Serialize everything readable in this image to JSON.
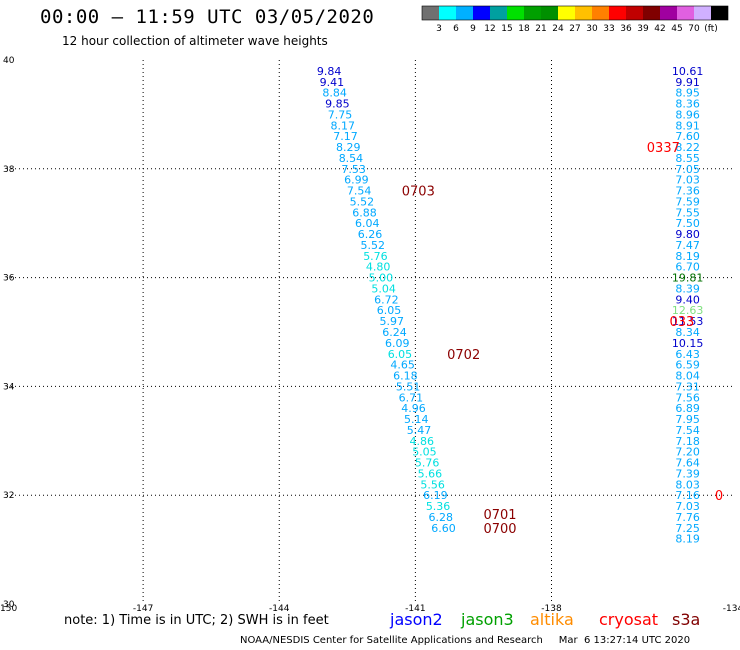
{
  "header": {
    "title": "00:00 – 11:59 UTC 03/05/2020",
    "subtitle": "12 hour collection of altimeter wave heights"
  },
  "colorbar": {
    "colors": [
      "#707070",
      "#00ffff",
      "#00b0ff",
      "#0000ff",
      "#00a0a0",
      "#00e000",
      "#00a000",
      "#009000",
      "#ffff00",
      "#ffc000",
      "#ff8000",
      "#ff0000",
      "#c00000",
      "#800000",
      "#a000a0",
      "#e060e0",
      "#d0b0ff",
      "#000000"
    ],
    "labels": [
      "3",
      "6",
      "9",
      "12",
      "15",
      "18",
      "21",
      "24",
      "27",
      "30",
      "33",
      "36",
      "39",
      "42",
      "45",
      "70",
      "(ft)"
    ]
  },
  "note": "note:  1) Time is in UTC;  2) SWH is in feet",
  "satellites": [
    {
      "name": "jason2",
      "color": "#0000ff"
    },
    {
      "name": "jason3",
      "color": "#00a000"
    },
    {
      "name": "altika",
      "color": "#ff8c00"
    },
    {
      "name": "cryosat",
      "color": "#ff0000"
    },
    {
      "name": "s3a",
      "color": "#800000"
    }
  ],
  "footer": "NOAA/NESDIS Center for Satellite Applications and Research     Mar  6 13:27:14 UTC 2020",
  "chart_data": {
    "type": "scatter",
    "title": "12 hour collection of altimeter wave heights",
    "xlim": [
      -150,
      -134
    ],
    "ylim": [
      30,
      40
    ],
    "x_ticks": [
      "-150",
      "-147",
      "-144",
      "-141",
      "-138",
      "-134"
    ],
    "y_ticks": [
      "30",
      "32",
      "34",
      "36",
      "38",
      "40"
    ],
    "grid": true,
    "series": [
      {
        "name": "track 1",
        "points": [
          {
            "x": -142.9,
            "y": 39.8,
            "v": "9.84",
            "c": "#0000cc"
          },
          {
            "x": -142.84,
            "y": 39.6,
            "v": "9.41",
            "c": "#0000cc"
          },
          {
            "x": -142.78,
            "y": 39.4,
            "v": "8.84",
            "c": "#00a8ff"
          },
          {
            "x": -142.72,
            "y": 39.2,
            "v": "9.85",
            "c": "#0000cc"
          },
          {
            "x": -142.66,
            "y": 39.0,
            "v": "7.75",
            "c": "#00a8ff"
          },
          {
            "x": -142.6,
            "y": 38.8,
            "v": "8.17",
            "c": "#00a8ff"
          },
          {
            "x": -142.54,
            "y": 38.6,
            "v": "7.17",
            "c": "#00a8ff"
          },
          {
            "x": -142.48,
            "y": 38.4,
            "v": "8.29",
            "c": "#00a8ff"
          },
          {
            "x": -142.42,
            "y": 38.2,
            "v": "8.54",
            "c": "#00a8ff"
          },
          {
            "x": -142.36,
            "y": 38.0,
            "v": "7.53",
            "c": "#00a8ff"
          },
          {
            "x": -142.3,
            "y": 37.8,
            "v": "6.99",
            "c": "#00a8ff"
          },
          {
            "x": -142.24,
            "y": 37.6,
            "v": "7.54",
            "c": "#00a8ff"
          },
          {
            "x": -142.18,
            "y": 37.4,
            "v": "5.52",
            "c": "#00a8ff"
          },
          {
            "x": -142.12,
            "y": 37.2,
            "v": "6.88",
            "c": "#00a8ff"
          },
          {
            "x": -142.06,
            "y": 37.0,
            "v": "6.04",
            "c": "#00a8ff"
          },
          {
            "x": -142.0,
            "y": 36.8,
            "v": "6.26",
            "c": "#00a8ff"
          },
          {
            "x": -141.94,
            "y": 36.6,
            "v": "5.52",
            "c": "#00a8ff"
          },
          {
            "x": -141.88,
            "y": 36.4,
            "v": "5.76",
            "c": "#00e0e0"
          },
          {
            "x": -141.82,
            "y": 36.2,
            "v": "4.80",
            "c": "#00e0e0"
          },
          {
            "x": -141.76,
            "y": 36.0,
            "v": "5.00",
            "c": "#00e0e0"
          },
          {
            "x": -141.7,
            "y": 35.8,
            "v": "5.04",
            "c": "#00e0e0"
          },
          {
            "x": -141.64,
            "y": 35.6,
            "v": "6.72",
            "c": "#00a8ff"
          },
          {
            "x": -141.58,
            "y": 35.4,
            "v": "6.05",
            "c": "#00a8ff"
          },
          {
            "x": -141.52,
            "y": 35.2,
            "v": "5.97",
            "c": "#00a8ff"
          },
          {
            "x": -141.46,
            "y": 35.0,
            "v": "6.24",
            "c": "#00a8ff"
          },
          {
            "x": -141.4,
            "y": 34.8,
            "v": "6.09",
            "c": "#00a8ff"
          },
          {
            "x": -141.34,
            "y": 34.6,
            "v": "6.05",
            "c": "#00e0e0"
          },
          {
            "x": -141.28,
            "y": 34.4,
            "v": "4.65",
            "c": "#00a8ff"
          },
          {
            "x": -141.22,
            "y": 34.2,
            "v": "6.18",
            "c": "#00a8ff"
          },
          {
            "x": -141.16,
            "y": 34.0,
            "v": "5.51",
            "c": "#00a8ff"
          },
          {
            "x": -141.1,
            "y": 33.8,
            "v": "6.71",
            "c": "#00a8ff"
          },
          {
            "x": -141.04,
            "y": 33.6,
            "v": "4.96",
            "c": "#00a8ff"
          },
          {
            "x": -140.98,
            "y": 33.4,
            "v": "5.14",
            "c": "#00a8ff"
          },
          {
            "x": -140.92,
            "y": 33.2,
            "v": "5.47",
            "c": "#00a8ff"
          },
          {
            "x": -140.86,
            "y": 33.0,
            "v": "4.86",
            "c": "#00e0e0"
          },
          {
            "x": -140.8,
            "y": 32.8,
            "v": "5.05",
            "c": "#00e0e0"
          },
          {
            "x": -140.74,
            "y": 32.6,
            "v": "5.76",
            "c": "#00e0e0"
          },
          {
            "x": -140.68,
            "y": 32.4,
            "v": "5.66",
            "c": "#00e0e0"
          },
          {
            "x": -140.62,
            "y": 32.2,
            "v": "5.56",
            "c": "#00e0e0"
          },
          {
            "x": -140.56,
            "y": 32.0,
            "v": "6.19",
            "c": "#00a8ff"
          },
          {
            "x": -140.5,
            "y": 31.8,
            "v": "5.36",
            "c": "#00e0e0"
          },
          {
            "x": -140.44,
            "y": 31.6,
            "v": "6.28",
            "c": "#00a8ff"
          },
          {
            "x": -140.38,
            "y": 31.4,
            "v": "6.60",
            "c": "#00a8ff"
          }
        ]
      },
      {
        "name": "track 2",
        "points": [
          {
            "x": -135.0,
            "y": 39.8,
            "v": "10.61",
            "c": "#0000cc"
          },
          {
            "x": -135.0,
            "y": 39.6,
            "v": "9.91",
            "c": "#0000cc"
          },
          {
            "x": -135.0,
            "y": 39.4,
            "v": "8.95",
            "c": "#00a8ff"
          },
          {
            "x": -135.0,
            "y": 39.2,
            "v": "8.36",
            "c": "#00a8ff"
          },
          {
            "x": -135.0,
            "y": 39.0,
            "v": "8.96",
            "c": "#00a8ff"
          },
          {
            "x": -135.0,
            "y": 38.8,
            "v": "8.91",
            "c": "#00a8ff"
          },
          {
            "x": -135.0,
            "y": 38.6,
            "v": "7.60",
            "c": "#00a8ff"
          },
          {
            "x": -135.0,
            "y": 38.4,
            "v": "8.22",
            "c": "#00a8ff"
          },
          {
            "x": -135.0,
            "y": 38.2,
            "v": "8.55",
            "c": "#00a8ff"
          },
          {
            "x": -135.0,
            "y": 38.0,
            "v": "7.05",
            "c": "#00a8ff"
          },
          {
            "x": -135.0,
            "y": 37.8,
            "v": "7.03",
            "c": "#00a8ff"
          },
          {
            "x": -135.0,
            "y": 37.6,
            "v": "7.36",
            "c": "#00a8ff"
          },
          {
            "x": -135.0,
            "y": 37.4,
            "v": "7.59",
            "c": "#00a8ff"
          },
          {
            "x": -135.0,
            "y": 37.2,
            "v": "7.55",
            "c": "#00a8ff"
          },
          {
            "x": -135.0,
            "y": 37.0,
            "v": "7.50",
            "c": "#00a8ff"
          },
          {
            "x": -135.0,
            "y": 36.8,
            "v": "9.80",
            "c": "#0000cc"
          },
          {
            "x": -135.0,
            "y": 36.6,
            "v": "7.47",
            "c": "#00a8ff"
          },
          {
            "x": -135.0,
            "y": 36.4,
            "v": "8.19",
            "c": "#00a8ff"
          },
          {
            "x": -135.0,
            "y": 36.2,
            "v": "6.70",
            "c": "#00a8ff"
          },
          {
            "x": -135.0,
            "y": 36.0,
            "v": "19.81",
            "c": "#007000"
          },
          {
            "x": -135.0,
            "y": 35.8,
            "v": "8.39",
            "c": "#00a8ff"
          },
          {
            "x": -135.0,
            "y": 35.6,
            "v": "9.40",
            "c": "#0000cc"
          },
          {
            "x": -135.0,
            "y": 35.4,
            "v": "12.63",
            "c": "#80e080"
          },
          {
            "x": -135.0,
            "y": 35.2,
            "v": "11.53",
            "c": "#0000cc"
          },
          {
            "x": -135.0,
            "y": 35.0,
            "v": "8.34",
            "c": "#00a8ff"
          },
          {
            "x": -135.0,
            "y": 34.8,
            "v": "10.15",
            "c": "#0000cc"
          },
          {
            "x": -135.0,
            "y": 34.6,
            "v": "6.43",
            "c": "#00a8ff"
          },
          {
            "x": -135.0,
            "y": 34.4,
            "v": "6.59",
            "c": "#00a8ff"
          },
          {
            "x": -135.0,
            "y": 34.2,
            "v": "8.04",
            "c": "#00a8ff"
          },
          {
            "x": -135.0,
            "y": 34.0,
            "v": "7.31",
            "c": "#00a8ff"
          },
          {
            "x": -135.0,
            "y": 33.8,
            "v": "7.56",
            "c": "#00a8ff"
          },
          {
            "x": -135.0,
            "y": 33.6,
            "v": "6.89",
            "c": "#00a8ff"
          },
          {
            "x": -135.0,
            "y": 33.4,
            "v": "7.95",
            "c": "#00a8ff"
          },
          {
            "x": -135.0,
            "y": 33.2,
            "v": "7.54",
            "c": "#00a8ff"
          },
          {
            "x": -135.0,
            "y": 33.0,
            "v": "7.18",
            "c": "#00a8ff"
          },
          {
            "x": -135.0,
            "y": 32.8,
            "v": "7.20",
            "c": "#00a8ff"
          },
          {
            "x": -135.0,
            "y": 32.6,
            "v": "7.64",
            "c": "#00a8ff"
          },
          {
            "x": -135.0,
            "y": 32.4,
            "v": "7.39",
            "c": "#00a8ff"
          },
          {
            "x": -135.0,
            "y": 32.2,
            "v": "8.03",
            "c": "#00a8ff"
          },
          {
            "x": -135.0,
            "y": 32.0,
            "v": "7.16",
            "c": "#00a8ff"
          },
          {
            "x": -135.0,
            "y": 31.8,
            "v": "7.03",
            "c": "#00a8ff"
          },
          {
            "x": -135.0,
            "y": 31.6,
            "v": "7.76",
            "c": "#00a8ff"
          },
          {
            "x": -135.0,
            "y": 31.4,
            "v": "7.25",
            "c": "#00a8ff"
          },
          {
            "x": -135.0,
            "y": 31.2,
            "v": "8.19",
            "c": "#00a8ff"
          }
        ]
      }
    ],
    "time_annotations": [
      {
        "x": -141.3,
        "y": 37.6,
        "text": "0703",
        "color": "#8b0000"
      },
      {
        "x": -140.3,
        "y": 34.6,
        "text": "0702",
        "color": "#8b0000"
      },
      {
        "x": -139.5,
        "y": 31.65,
        "text": "0701",
        "color": "#8b0000"
      },
      {
        "x": -139.5,
        "y": 31.4,
        "text": "0700",
        "color": "#8b0000"
      },
      {
        "x": -135.9,
        "y": 38.4,
        "text": "0337",
        "color": "#ff0000"
      },
      {
        "x": -135.4,
        "y": 35.2,
        "text": "033",
        "color": "#ff0000"
      },
      {
        "x": -134.4,
        "y": 32.0,
        "text": "0",
        "color": "#ff0000"
      }
    ]
  }
}
